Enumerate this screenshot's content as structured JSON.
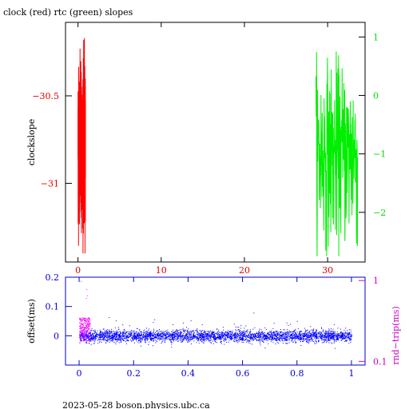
{
  "footer": "2023-05-28  boson.physics.ubc.ca",
  "chart_data": [
    {
      "type": "line",
      "title": "clock (red) rtc (green) slopes",
      "ylabel": "clockslope",
      "xlim": [
        -1.5,
        34.5
      ],
      "ylim": [
        -31.45,
        -30.08
      ],
      "x_ticks": [
        0,
        10,
        20,
        30
      ],
      "y_ticks": [
        -31,
        -30.5
      ],
      "y_tick_labels": [
        "−31",
        "−30.5"
      ],
      "y2lim": [
        -2.85,
        1.25
      ],
      "y2_ticks": [
        -2,
        -1,
        0,
        1
      ],
      "y2_tick_labels": [
        "−2",
        "−1",
        "0",
        "1"
      ],
      "colors": {
        "clock": "#ff0000",
        "rtc": "#00ee00",
        "axis_left": "#dd0000",
        "axis_right": "#00dd00"
      },
      "series": [
        {
          "axis": "left",
          "x_range": [
            0,
            0.9
          ],
          "y_range": [
            -31.4,
            -30.13
          ],
          "y_center": -30.78,
          "points": 520
        },
        {
          "axis": "right",
          "x_range": [
            28.6,
            33.6
          ],
          "y_range": [
            -2.75,
            1.0
          ],
          "y_center": -1.0,
          "points": 200
        }
      ]
    },
    {
      "type": "scatter",
      "ylabel": "offset(ms)",
      "y2label": "rnd−trip(ms)",
      "xlim": [
        -0.05,
        1.05
      ],
      "ylim": [
        -0.1,
        0.2
      ],
      "x_ticks": [
        0,
        0.2,
        0.4,
        0.6,
        0.8,
        1
      ],
      "y_ticks": [
        0,
        0.1,
        0.2
      ],
      "y2_scale": "log",
      "y2lim": [
        0.09,
        1.1
      ],
      "y2_ticks": [
        0.1,
        1
      ],
      "colors": {
        "offset": "#0000ff",
        "rndtrip": "#ff00ff",
        "axis": "#0000cc",
        "axis_right": "#cc00cc"
      },
      "series": [
        {
          "name": "offset",
          "x_range": [
            0,
            1
          ],
          "y_center": 0.0,
          "y_spread": 0.02,
          "points": 4500
        },
        {
          "name": "rnd−trip",
          "x_range": [
            0,
            0.04
          ],
          "y_range": [
            0.18,
            0.35
          ],
          "points": 250
        }
      ]
    }
  ]
}
